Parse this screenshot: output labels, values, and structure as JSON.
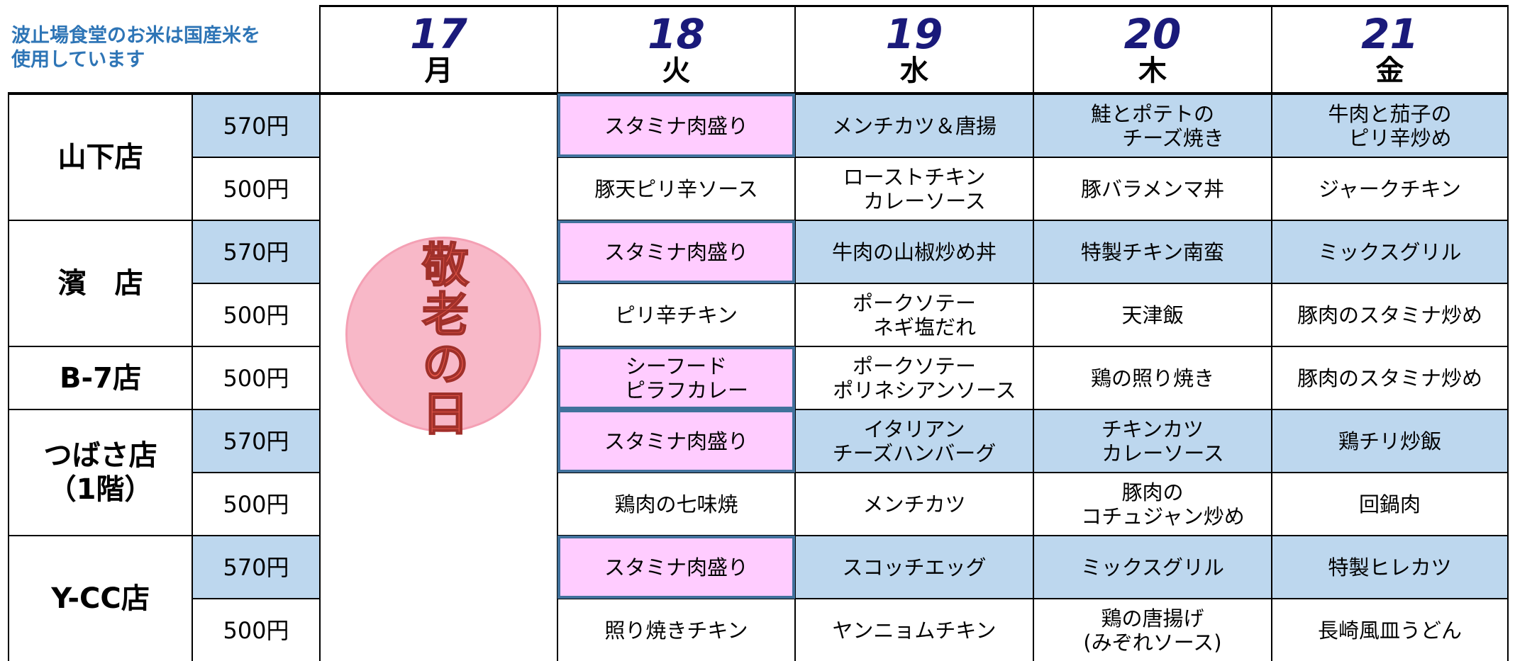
{
  "header": {
    "note": "波止場食堂のお米は国産米を\n使用しています",
    "days": [
      {
        "date": "17",
        "weekday": "月"
      },
      {
        "date": "18",
        "weekday": "火"
      },
      {
        "date": "19",
        "weekday": "水"
      },
      {
        "date": "20",
        "weekday": "木"
      },
      {
        "date": "21",
        "weekday": "金"
      }
    ]
  },
  "holiday": {
    "label": "敬老の日"
  },
  "stores": [
    {
      "name": "山下店",
      "rows": [
        {
          "price": "570円",
          "items": [
            "スタミナ肉盛り",
            "メンチカツ＆唐揚",
            "鮭とポテトの\n　　チーズ焼き",
            "牛肉と茄子の\n　ピリ辛炒め"
          ]
        },
        {
          "price": "500円",
          "items": [
            "豚天ピリ辛ソース",
            "ローストチキン\n　カレーソース",
            "豚バラメンマ丼",
            "ジャークチキン"
          ]
        }
      ]
    },
    {
      "name": "濱　店",
      "rows": [
        {
          "price": "570円",
          "items": [
            "スタミナ肉盛り",
            "牛肉の山椒炒め丼",
            "特製チキン南蛮",
            "ミックスグリル"
          ]
        },
        {
          "price": "500円",
          "items": [
            "ピリ辛チキン",
            "ポークソテー\n　ネギ塩だれ",
            "天津飯",
            "豚肉のスタミナ炒め"
          ]
        }
      ]
    },
    {
      "name": "B-7店",
      "rows": [
        {
          "price": "500円",
          "items": [
            "シーフード\n　ピラフカレー",
            "ポークソテー\n　ポリネシアンソース",
            "鶏の照り焼き",
            "豚肉のスタミナ炒め"
          ]
        }
      ]
    },
    {
      "name": "つばさ店\n（1階）",
      "rows": [
        {
          "price": "570円",
          "items": [
            "スタミナ肉盛り",
            "イタリアン\nチーズハンバーグ",
            "チキンカツ\n　カレーソース",
            "鶏チリ炒飯"
          ]
        },
        {
          "price": "500円",
          "items": [
            "鶏肉の七味焼",
            "メンチカツ",
            "豚肉の\n　コチュジャン炒め",
            "回鍋肉"
          ]
        }
      ]
    },
    {
      "name": "Y-CC店",
      "rows": [
        {
          "price": "570円",
          "items": [
            "スタミナ肉盛り",
            "スコッチエッグ",
            "ミックスグリル",
            "特製ヒレカツ"
          ]
        },
        {
          "price": "500円",
          "items": [
            "照り焼きチキン",
            "ヤンニョムチキン",
            "鶏の唐揚げ\n(みぞれソース)",
            "長崎風皿うどん"
          ]
        }
      ]
    }
  ]
}
